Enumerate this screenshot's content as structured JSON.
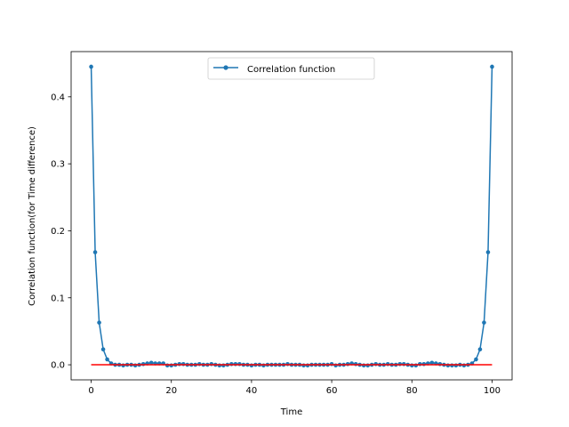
{
  "chart_data": {
    "type": "line",
    "title": "",
    "xlabel": "Time",
    "ylabel": "Correlation function(for Time difference)",
    "xlim": [
      -5,
      105
    ],
    "ylim": [
      -0.0225,
      0.4675
    ],
    "xticks": [
      0,
      20,
      40,
      60,
      80,
      100
    ],
    "xtick_labels": [
      "0",
      "20",
      "40",
      "60",
      "80",
      "100"
    ],
    "yticks": [
      0.0,
      0.1,
      0.2,
      0.3,
      0.4
    ],
    "ytick_labels": [
      "0.0",
      "0.1",
      "0.2",
      "0.3",
      "0.4"
    ],
    "grid": false,
    "legend_position": "upper center",
    "series": [
      {
        "name": "Correlation function",
        "color": "#1f77b4",
        "marker": "dot",
        "x": [
          0,
          1,
          2,
          3,
          4,
          5,
          6,
          7,
          8,
          9,
          10,
          11,
          12,
          13,
          14,
          15,
          16,
          17,
          18,
          19,
          20,
          21,
          22,
          23,
          24,
          25,
          26,
          27,
          28,
          29,
          30,
          31,
          32,
          33,
          34,
          35,
          36,
          37,
          38,
          39,
          40,
          41,
          42,
          43,
          44,
          45,
          46,
          47,
          48,
          49,
          50,
          51,
          52,
          53,
          54,
          55,
          56,
          57,
          58,
          59,
          60,
          61,
          62,
          63,
          64,
          65,
          66,
          67,
          68,
          69,
          70,
          71,
          72,
          73,
          74,
          75,
          76,
          77,
          78,
          79,
          80,
          81,
          82,
          83,
          84,
          85,
          86,
          87,
          88,
          89,
          90,
          91,
          92,
          93,
          94,
          95,
          96,
          97,
          98,
          99,
          100
        ],
        "y": [
          0.445,
          0.168,
          0.063,
          0.023,
          0.008,
          0.002,
          0.0,
          0.0,
          -0.001,
          0.0,
          0.0,
          -0.001,
          0.0,
          0.001,
          0.002,
          0.003,
          0.002,
          0.002,
          0.002,
          -0.001,
          -0.001,
          0.0,
          0.001,
          0.001,
          0.0,
          0.0,
          0.0,
          0.001,
          0.0,
          0.0,
          0.001,
          0.0,
          -0.001,
          -0.001,
          0.0,
          0.001,
          0.001,
          0.001,
          0.0,
          0.0,
          -0.001,
          0.0,
          0.0,
          -0.001,
          0.0,
          0.0,
          0.0,
          0.0,
          0.0,
          0.001,
          0.0,
          0.0,
          0.0,
          -0.001,
          -0.001,
          0.0,
          0.0,
          0.0,
          0.0,
          0.0,
          0.001,
          -0.001,
          0.0,
          0.0,
          0.001,
          0.002,
          0.001,
          0.0,
          -0.001,
          -0.001,
          0.0,
          0.001,
          0.0,
          0.0,
          0.001,
          0.0,
          0.0,
          0.001,
          0.001,
          0.0,
          -0.001,
          -0.001,
          0.001,
          0.001,
          0.002,
          0.003,
          0.002,
          0.001,
          0.0,
          -0.001,
          -0.001,
          -0.001,
          0.0,
          -0.001,
          0.0,
          0.002,
          0.008,
          0.023,
          0.063,
          0.168,
          0.445
        ]
      },
      {
        "name": "",
        "color": "#ff0000",
        "marker": "none",
        "x": [
          0,
          100
        ],
        "y": [
          0.0,
          0.0
        ]
      }
    ]
  }
}
